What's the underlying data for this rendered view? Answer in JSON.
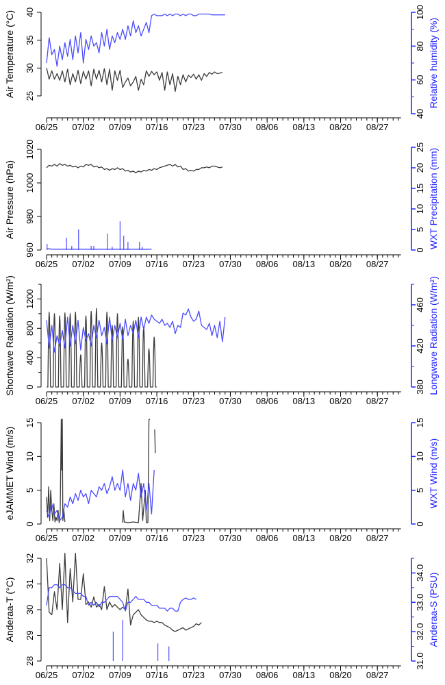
{
  "x_axis": {
    "labels": [
      "06/25",
      "07/02",
      "07/09",
      "07/16",
      "07/23",
      "07/30",
      "08/06",
      "08/13",
      "08/20",
      "08/27"
    ],
    "label_days": [
      0,
      7,
      14,
      21,
      28,
      35,
      42,
      49,
      56,
      63
    ],
    "range_days": [
      0,
      67.5
    ]
  },
  "colors": {
    "left_series": "#3a3a3a",
    "right_series": "#4a4aff",
    "right_axis": "#1f1fff"
  },
  "chart_data": [
    {
      "type": "line",
      "left": {
        "label": "Air Temperature (°C)",
        "ylim": [
          25,
          40
        ],
        "axis_range": [
          25,
          40
        ],
        "ticks": [
          "25",
          "30",
          "35",
          "40"
        ],
        "tick_values": [
          25,
          30,
          35,
          40
        ]
      },
      "right": {
        "label": "Relative humidity (%)",
        "ylim": [
          40,
          100
        ],
        "ticks": [
          "40",
          "60",
          "80",
          "100"
        ],
        "tick_values": [
          40,
          60,
          80,
          100
        ],
        "minor_ticks": [
          50,
          70,
          90
        ]
      },
      "series": [
        {
          "name": "Air Temperature",
          "axis": "left",
          "step_days": 0.5,
          "values": [
            30,
            28,
            29.5,
            28,
            29,
            27.8,
            29.5,
            27.5,
            29.8,
            27,
            29,
            27.5,
            29.6,
            27.2,
            29.4,
            28,
            29.5,
            26.8,
            29.8,
            28,
            29.6,
            27.5,
            29.9,
            27,
            29.8,
            26,
            29.5,
            27.8,
            29.6,
            26.5,
            27.5,
            28.2,
            26.8,
            27.5,
            28.5,
            26,
            28,
            27,
            29.5,
            28.5,
            29.4,
            28.8,
            29.3,
            27.8,
            29.2,
            26,
            29.3,
            27,
            29,
            25.8,
            28.5,
            27,
            28.8,
            27.5,
            28.7,
            28.3,
            28.9,
            28,
            28.8,
            27.8,
            29,
            28.5,
            29.2,
            28.9,
            29.3,
            29,
            29.1,
            29.2
          ]
        },
        {
          "name": "Relative humidity",
          "axis": "right",
          "step_days": 0.5,
          "values": [
            70,
            85,
            75,
            78,
            68,
            80,
            72,
            82,
            74,
            84,
            72,
            86,
            76,
            88,
            70,
            84,
            78,
            86,
            80,
            82,
            76,
            88,
            80,
            90,
            78,
            86,
            82,
            88,
            84,
            90,
            84,
            92,
            86,
            95,
            88,
            92,
            86,
            90,
            94,
            88,
            98,
            99,
            98,
            98,
            98,
            99,
            98,
            99,
            98,
            99,
            99,
            98,
            99,
            98,
            99,
            99,
            98,
            98,
            99,
            99,
            99,
            99,
            99,
            98.5,
            98.5,
            98.5,
            98.5,
            98.5,
            98.5
          ]
        }
      ]
    },
    {
      "type": "line",
      "left": {
        "label": "Air Pressure (hPa)",
        "ylim": [
          960,
          1020
        ],
        "axis_range": [
          960,
          1020
        ],
        "ticks": [
          "960",
          "980",
          "1000",
          "1020"
        ],
        "tick_values": [
          960,
          980,
          1000,
          1020
        ]
      },
      "right": {
        "label": "WXT Precipitation (mm)",
        "ylim": [
          0,
          25
        ],
        "ticks": [
          "0",
          "5",
          "10",
          "15",
          "20",
          "25"
        ],
        "tick_values": [
          0,
          5,
          10,
          15,
          20,
          25
        ],
        "minor_ticks": []
      },
      "series": [
        {
          "name": "Air Pressure",
          "axis": "left",
          "step_days": 0.5,
          "values": [
            1009,
            1010.5,
            1010,
            1011,
            1010,
            1011.5,
            1010.5,
            1011,
            1010,
            1010.5,
            1009.5,
            1010,
            1009,
            1010,
            1009.5,
            1011,
            1010.5,
            1011,
            1009.5,
            1010,
            1009,
            1009.5,
            1008,
            1008.5,
            1007.5,
            1008.5,
            1008,
            1009,
            1008,
            1008.5,
            1007,
            1007.5,
            1006.5,
            1007,
            1006,
            1007,
            1006.5,
            1007.5,
            1007,
            1008,
            1007.5,
            1008.5,
            1008,
            1009,
            1009.5,
            1010,
            1010.5,
            1011,
            1010,
            1011,
            1009.5,
            1010,
            1008,
            1008.5,
            1007,
            1007.5,
            1007,
            1008,
            1008,
            1009,
            1009,
            1009.5,
            1009,
            1010,
            1010,
            1009.5,
            1009,
            1009.5
          ]
        },
        {
          "name": "WXT Precipitation baseline",
          "axis": "right",
          "step_days": 0.5,
          "values": [
            0.3,
            0.3,
            0.2,
            0.2,
            0.2,
            0.2,
            0.2,
            0.2,
            0.2,
            0.2,
            0.2,
            0.2,
            0.2,
            0.2,
            0.2,
            0.2,
            0.2,
            0.2,
            0.2,
            0.2,
            0.2,
            0.2,
            0.2,
            0.2,
            0.2,
            0.2,
            0.2,
            0.2,
            0.2,
            0.2,
            0.2,
            0.2,
            0.2,
            0.2,
            0.2,
            0.2,
            0.2,
            0.2,
            0.2,
            0.2,
            0.2
          ]
        },
        {
          "name": "WXT Precipitation",
          "axis": "right",
          "spikes": [
            [
              0.1,
              1.5
            ],
            [
              3.8,
              3
            ],
            [
              4.8,
              1
            ],
            [
              6.1,
              5
            ],
            [
              8.5,
              1
            ],
            [
              9,
              1
            ],
            [
              11.6,
              4
            ],
            [
              12.5,
              0.8
            ],
            [
              14,
              7
            ],
            [
              14.7,
              3.5
            ],
            [
              15.5,
              2
            ],
            [
              17.7,
              2
            ],
            [
              18.2,
              0.8
            ]
          ]
        }
      ]
    },
    {
      "type": "line",
      "left": {
        "label": "Shortwave Radiation (W/m²)",
        "ylim": [
          0,
          1400
        ],
        "axis_range": [
          0,
          1400
        ],
        "ticks": [
          "0",
          "400",
          "800",
          "1200"
        ],
        "tick_values": [
          0,
          400,
          800,
          1200
        ],
        "minor_ticks": [
          200,
          600,
          1000,
          1400
        ]
      },
      "right": {
        "label": "Longwave Radiation (W/m²)",
        "ylim": [
          380,
          480
        ],
        "ticks": [
          "380",
          "420",
          "460"
        ],
        "tick_values": [
          380,
          420,
          460
        ],
        "minor_ticks": [
          400,
          440,
          480
        ]
      },
      "series": [
        {
          "name": "Shortwave Radiation daily peak",
          "axis": "left",
          "diurnal_peaks": [
            1020,
            1000,
            970,
            1010,
            1000,
            1020,
            440,
            970,
            1030,
            1070,
            600,
            1020,
            840,
            1000,
            820,
            380,
            900,
            950,
            820,
            520,
            680
          ]
        },
        {
          "name": "Longwave Radiation",
          "axis": "right",
          "step_days": 0.5,
          "values": [
            445,
            418,
            440,
            414,
            430,
            420,
            435,
            418,
            448,
            420,
            440,
            422,
            445,
            416,
            438,
            425,
            432,
            420,
            440,
            428,
            445,
            430,
            438,
            422,
            448,
            425,
            440,
            428,
            442,
            426,
            446,
            430,
            440,
            432,
            445,
            428,
            448,
            436,
            448,
            442,
            450,
            446,
            444,
            442,
            446,
            440,
            442,
            438,
            444,
            432,
            440,
            438,
            452,
            450,
            456,
            448,
            444,
            446,
            454,
            440,
            438,
            436,
            442,
            430,
            440,
            428,
            444,
            424,
            448
          ]
        }
      ]
    },
    {
      "type": "line",
      "left": {
        "label": "eJAMMET Wind (m/s)",
        "ylim": [
          0,
          15
        ],
        "axis_range": [
          0,
          15
        ],
        "ticks": [
          "0",
          "5",
          "10",
          "15"
        ],
        "tick_values": [
          0,
          5,
          10,
          15
        ]
      },
      "right": {
        "label": "WXT Wind (m/s)",
        "ylim": [
          0,
          15
        ],
        "ticks": [
          "0",
          "5",
          "10",
          "15"
        ],
        "tick_values": [
          0,
          5,
          10,
          15
        ],
        "minor_ticks": []
      },
      "series": [
        {
          "name": "eJAMMET Wind",
          "axis": "left",
          "points": [
            [
              0,
              4
            ],
            [
              0.2,
              1
            ],
            [
              0.4,
              5.5
            ],
            [
              0.6,
              0.5
            ],
            [
              0.8,
              5
            ],
            [
              1,
              2
            ],
            [
              1.2,
              0.5
            ],
            [
              1.4,
              3
            ],
            [
              1.6,
              0.3
            ],
            [
              1.8,
              1
            ],
            [
              2,
              0.5
            ],
            [
              2.2,
              2
            ],
            [
              2.4,
              0.2
            ],
            [
              2.6,
              1.5
            ],
            [
              2.8,
              16
            ],
            [
              2.9,
              8
            ],
            [
              3,
              16
            ],
            [
              3.1,
              0.5
            ],
            [
              3.3,
              2
            ],
            [
              3.5,
              0.3
            ],
            null,
            [
              14.5,
              0.2
            ],
            [
              14.6,
              2
            ],
            [
              14.8,
              0.3
            ],
            [
              15.5,
              0.2
            ],
            [
              16.5,
              0.3
            ],
            [
              17.5,
              0.2
            ],
            [
              18,
              6
            ],
            [
              18.3,
              0.5
            ],
            [
              18.8,
              5
            ],
            [
              19,
              0.2
            ],
            [
              19.3,
              0.2
            ],
            [
              19.5,
              16
            ],
            [
              19.7,
              16
            ],
            null,
            [
              20.6,
              14
            ],
            [
              20.7,
              10.5
            ]
          ]
        },
        {
          "name": "WXT Wind",
          "axis": "right",
          "step_days": 0.5,
          "values": [
            2,
            1,
            3,
            1.5,
            2,
            0.5,
            1,
            3,
            2.5,
            4,
            3,
            4.5,
            3.5,
            5,
            4,
            4.5,
            3,
            5,
            4.5,
            4,
            5.5,
            5,
            6,
            4.5,
            5.5,
            7,
            5,
            6,
            5,
            8,
            4,
            6,
            3.5,
            6,
            5,
            7.5,
            4,
            6,
            2,
            6,
            1.5,
            8
          ]
        }
      ]
    },
    {
      "type": "line",
      "left": {
        "label": "Anderaa-T (°C)",
        "ylim": [
          28,
          32
        ],
        "axis_range": [
          28,
          32
        ],
        "ticks": [
          "28",
          "29",
          "30",
          "31",
          "32"
        ],
        "tick_values": [
          28,
          29,
          30,
          31,
          32
        ]
      },
      "right": {
        "label": "Anderaa-S (PSU)",
        "ylim": [
          31,
          34.5
        ],
        "ticks": [
          "31.0",
          "32.0",
          "33.0",
          "34.0"
        ],
        "tick_values": [
          31,
          32,
          33,
          34
        ],
        "minor_ticks": [
          31.5,
          32.5,
          33.5,
          34.5
        ]
      },
      "series": [
        {
          "name": "Anderaa-T",
          "axis": "left",
          "step_days": 0.5,
          "values": [
            32,
            29.9,
            29.8,
            30.7,
            30,
            31.8,
            30,
            32.2,
            29.5,
            31.6,
            30.3,
            32.2,
            30.4,
            30.4,
            31.4,
            30.2,
            30.3,
            30.1,
            30.5,
            30.1,
            30.2,
            30,
            30.9,
            30,
            30.3,
            30.1,
            30.2,
            30.1,
            30,
            30.1,
            30,
            30.8,
            29.4,
            29.8,
            29.9,
            30,
            29.8,
            29.7,
            29.6,
            29.55,
            29.55,
            29.5,
            29.55,
            29.5,
            29.5,
            29.4,
            29.35,
            29.3,
            29.2,
            29.15,
            29.2,
            29.25,
            29.3,
            29.2,
            29.25,
            29.3,
            29.35,
            29.45,
            29.4,
            29.5
          ]
        },
        {
          "name": "Anderaa-S",
          "axis": "right",
          "step_days": 0.5,
          "values": [
            32.9,
            33.5,
            33.5,
            33.6,
            33.6,
            33.5,
            33.6,
            33.6,
            33.5,
            33.5,
            33.4,
            33.3,
            33.3,
            33.3,
            33.2,
            33.2,
            32.9,
            33,
            32.9,
            33.0,
            32.85,
            33.0,
            33.0,
            33.1,
            33.2,
            33.2,
            33.2,
            33.2,
            33.1,
            33.0,
            32.7,
            33.0,
            33.0,
            33.1,
            33.2,
            33.1,
            33.1,
            33.1,
            33.0,
            33.0,
            32.9,
            32.9,
            32.9,
            32.8,
            32.8,
            32.8,
            32.7,
            32.8,
            32.8,
            32.7,
            32.7,
            33.0,
            33.1,
            33.15,
            33.1,
            33.1,
            33.15,
            33.1
          ]
        },
        {
          "name": "Anderaa-S dips",
          "axis": "right",
          "spikes": [
            [
              0.05,
              31
            ],
            [
              2.8,
              31
            ],
            [
              3.1,
              31
            ],
            [
              12.7,
              32.0
            ],
            [
              14.5,
              32.4
            ],
            [
              21.2,
              31.6
            ],
            [
              23.3,
              31.5
            ]
          ]
        }
      ]
    }
  ]
}
